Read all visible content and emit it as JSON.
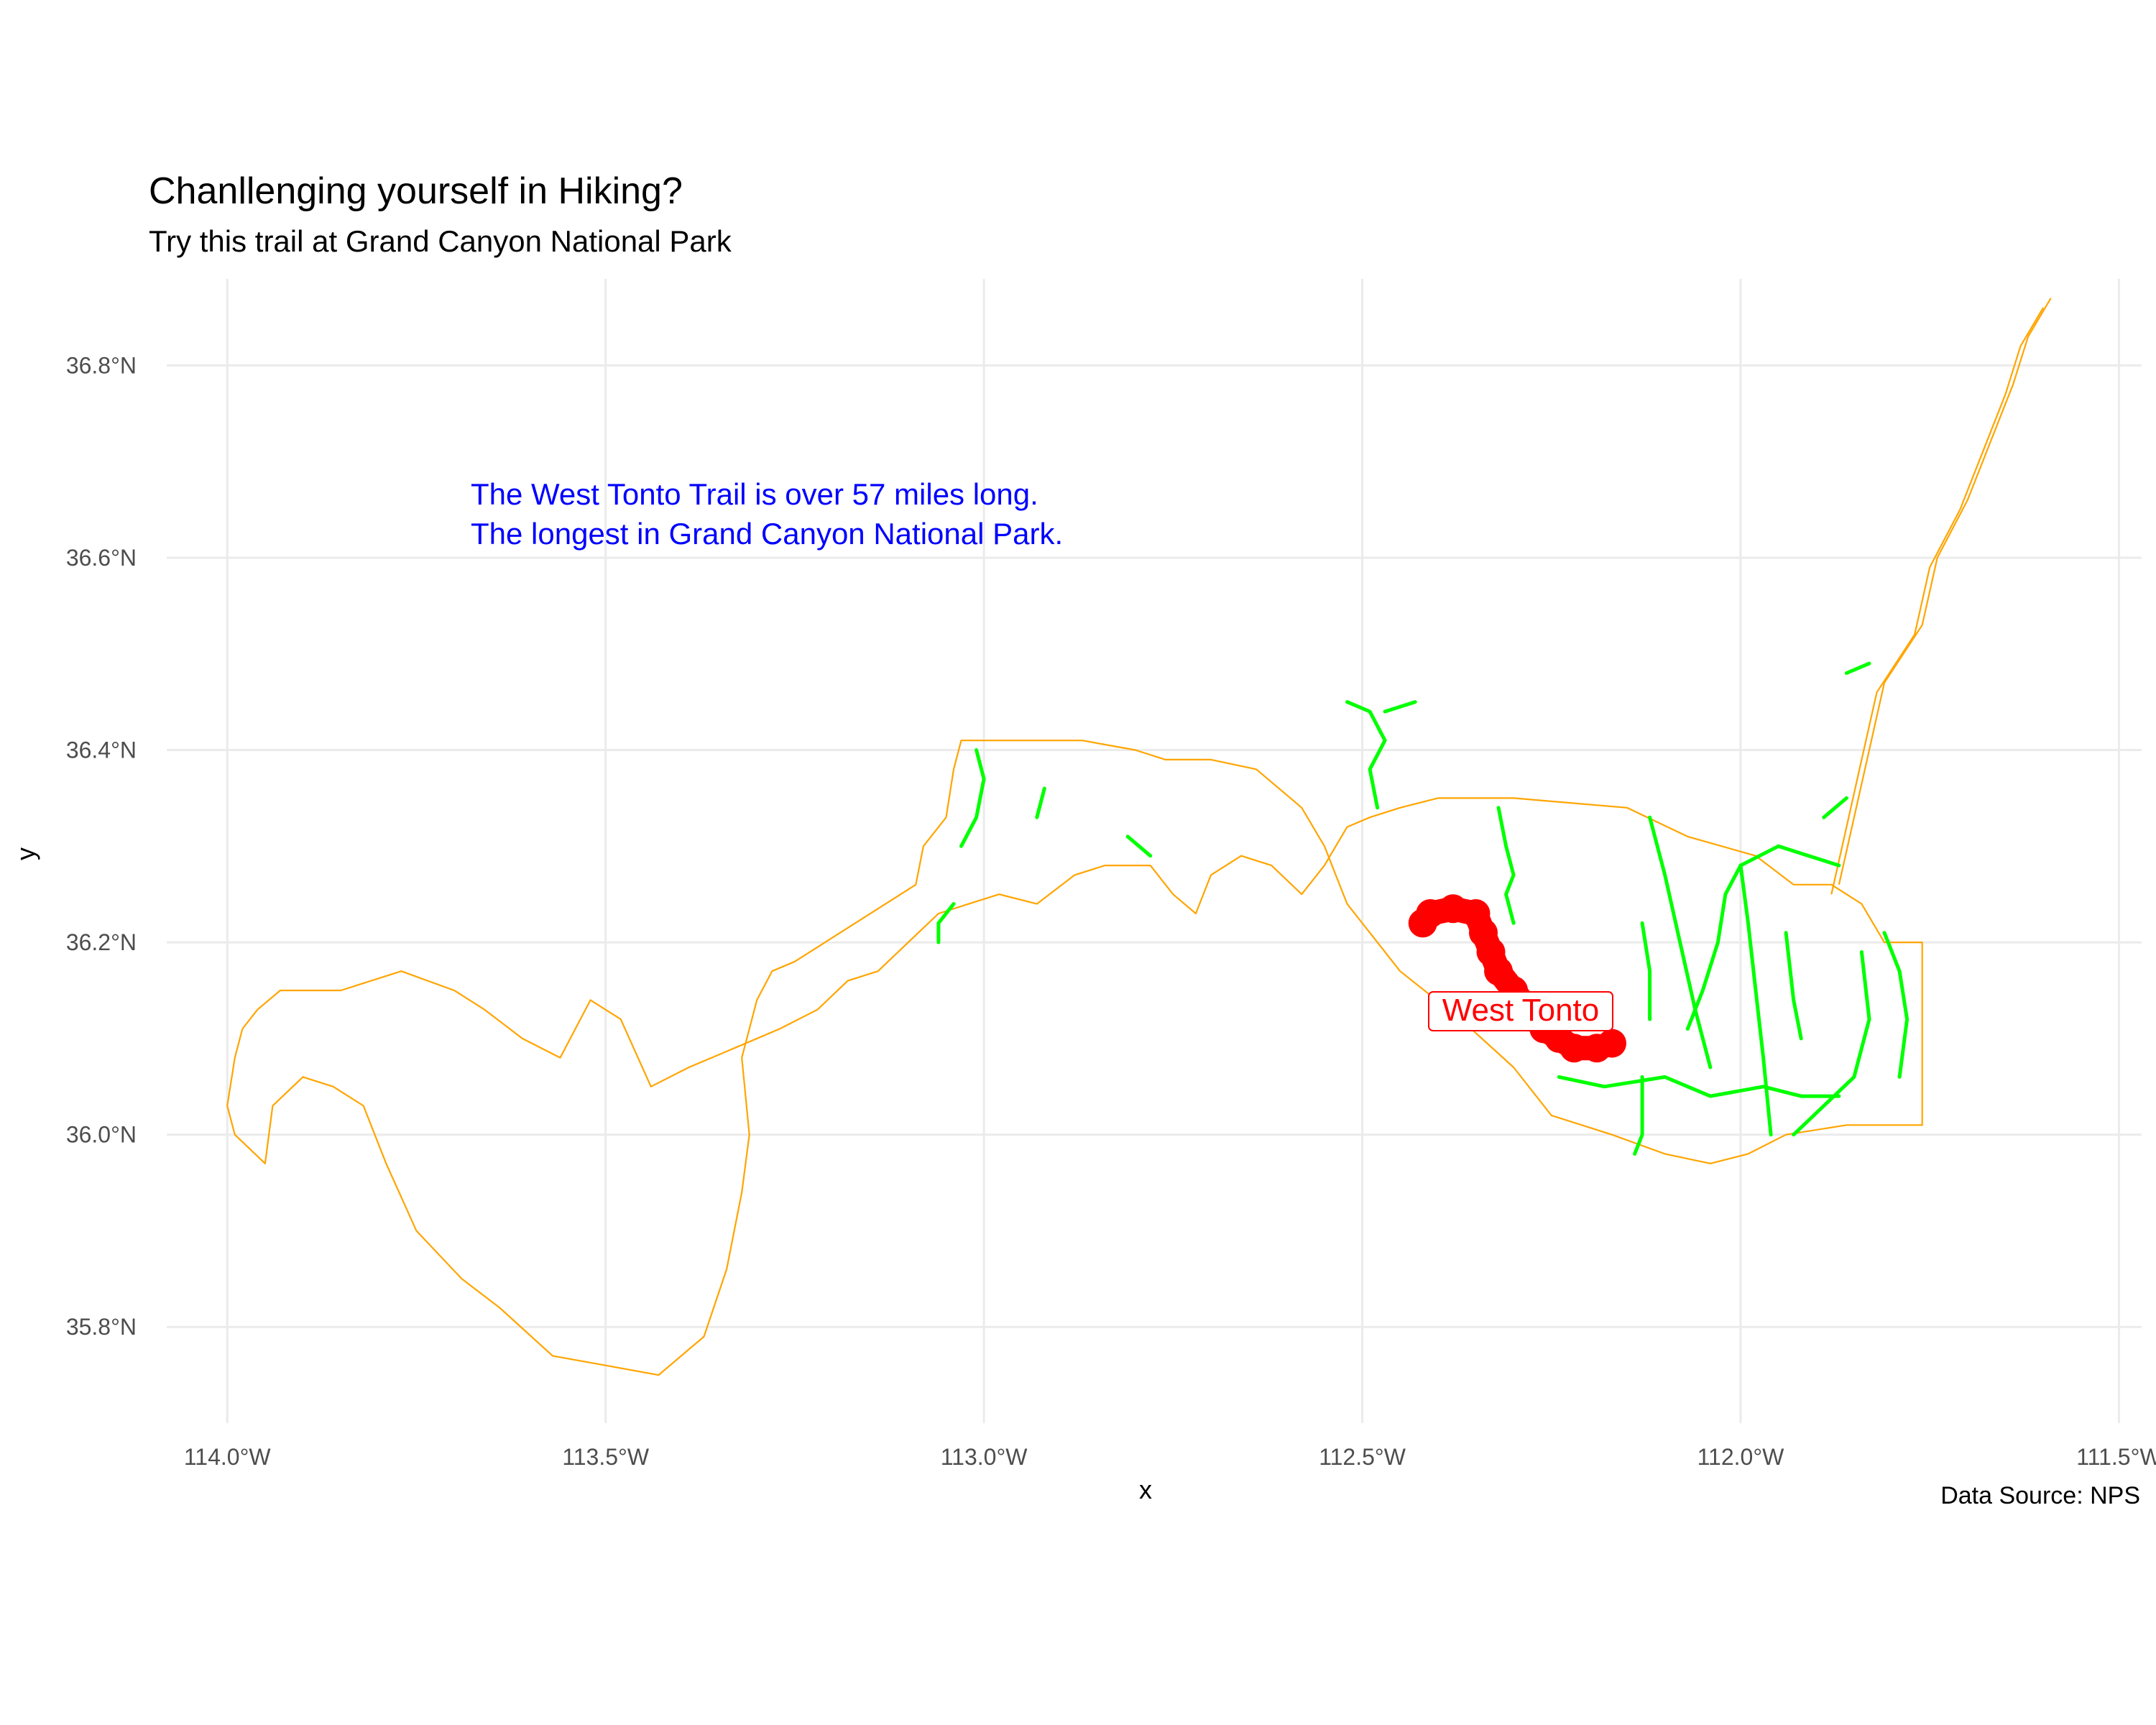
{
  "title": "Chanllenging yourself in Hiking?",
  "subtitle": "Try this trail at Grand Canyon National Park",
  "caption": "Data Source: NPS",
  "annotation": {
    "line1": "The West Tonto  Trail is over 57 miles long.",
    "line2": "The longest in Grand Canyon National Park.",
    "color": "#0000ff"
  },
  "trail_label": {
    "text": "West Tonto",
    "color": "#ff0000"
  },
  "chart_data": {
    "type": "map",
    "xlabel": "x",
    "ylabel": "y",
    "x_ticks": [
      {
        "value": -114.0,
        "label": "114.0°W"
      },
      {
        "value": -113.5,
        "label": "113.5°W"
      },
      {
        "value": -113.0,
        "label": "113.0°W"
      },
      {
        "value": -112.5,
        "label": "112.5°W"
      },
      {
        "value": -112.0,
        "label": "112.0°W"
      },
      {
        "value": -111.5,
        "label": "111.5°W"
      }
    ],
    "y_ticks": [
      {
        "value": 35.8,
        "label": "35.8°N"
      },
      {
        "value": 36.0,
        "label": "36.0°N"
      },
      {
        "value": 36.2,
        "label": "36.2°N"
      },
      {
        "value": 36.4,
        "label": "36.4°N"
      },
      {
        "value": 36.6,
        "label": "36.6°N"
      },
      {
        "value": 36.8,
        "label": "36.8°N"
      }
    ],
    "xlim": [
      -114.08,
      -111.47
    ],
    "ylim": [
      35.7,
      36.89
    ],
    "grid": true,
    "colors": {
      "boundary": "#ffa500",
      "trails": "#00ff00",
      "highlight": "#ff0000",
      "grid": "#ebebeb",
      "axis_text": "#4d4d4d"
    },
    "park_boundary": [
      [
        -113.98,
        36.11
      ],
      [
        -113.96,
        36.13
      ],
      [
        -113.93,
        36.15
      ],
      [
        -113.85,
        36.15
      ],
      [
        -113.77,
        36.17
      ],
      [
        -113.7,
        36.15
      ],
      [
        -113.66,
        36.13
      ],
      [
        -113.61,
        36.1
      ],
      [
        -113.56,
        36.08
      ],
      [
        -113.52,
        36.14
      ],
      [
        -113.48,
        36.12
      ],
      [
        -113.44,
        36.05
      ],
      [
        -113.39,
        36.07
      ],
      [
        -113.33,
        36.09
      ],
      [
        -113.27,
        36.11
      ],
      [
        -113.22,
        36.13
      ],
      [
        -113.18,
        36.16
      ],
      [
        -113.14,
        36.17
      ],
      [
        -113.1,
        36.2
      ],
      [
        -113.06,
        36.23
      ],
      [
        -113.02,
        36.24
      ],
      [
        -112.98,
        36.25
      ],
      [
        -112.93,
        36.24
      ],
      [
        -112.88,
        36.27
      ],
      [
        -112.84,
        36.28
      ],
      [
        -112.78,
        36.28
      ],
      [
        -112.75,
        36.25
      ],
      [
        -112.72,
        36.23
      ],
      [
        -112.7,
        36.27
      ],
      [
        -112.66,
        36.29
      ],
      [
        -112.62,
        36.28
      ],
      [
        -112.58,
        36.25
      ],
      [
        -112.55,
        36.28
      ],
      [
        -112.52,
        36.32
      ],
      [
        -112.49,
        36.33
      ],
      [
        -112.45,
        36.34
      ],
      [
        -112.4,
        36.35
      ],
      [
        -112.3,
        36.35
      ],
      [
        -112.15,
        36.34
      ],
      [
        -112.07,
        36.31
      ],
      [
        -111.98,
        36.29
      ],
      [
        -111.93,
        36.26
      ],
      [
        -111.88,
        36.26
      ],
      [
        -111.84,
        36.24
      ],
      [
        -111.81,
        36.2
      ],
      [
        -111.76,
        36.2
      ],
      [
        -111.76,
        36.01
      ],
      [
        -111.86,
        36.01
      ],
      [
        -111.94,
        36.0
      ],
      [
        -111.99,
        35.98
      ],
      [
        -112.04,
        35.97
      ],
      [
        -112.1,
        35.98
      ],
      [
        -112.17,
        36.0
      ],
      [
        -112.25,
        36.02
      ],
      [
        -112.3,
        36.07
      ],
      [
        -112.37,
        36.12
      ],
      [
        -112.45,
        36.17
      ],
      [
        -112.52,
        36.24
      ],
      [
        -112.55,
        36.3
      ],
      [
        -112.58,
        36.34
      ],
      [
        -112.64,
        36.38
      ],
      [
        -112.7,
        36.39
      ],
      [
        -112.76,
        36.39
      ],
      [
        -112.8,
        36.4
      ],
      [
        -112.87,
        36.41
      ],
      [
        -113.03,
        36.41
      ],
      [
        -113.04,
        36.38
      ],
      [
        -113.05,
        36.33
      ],
      [
        -113.08,
        36.3
      ],
      [
        -113.09,
        36.26
      ],
      [
        -113.13,
        36.24
      ],
      [
        -113.17,
        36.22
      ],
      [
        -113.21,
        36.2
      ],
      [
        -113.25,
        36.18
      ],
      [
        -113.28,
        36.17
      ],
      [
        -113.3,
        36.14
      ],
      [
        -113.32,
        36.08
      ],
      [
        -113.31,
        36.0
      ],
      [
        -113.32,
        35.94
      ],
      [
        -113.34,
        35.86
      ],
      [
        -113.37,
        35.79
      ],
      [
        -113.43,
        35.75
      ],
      [
        -113.5,
        35.76
      ],
      [
        -113.57,
        35.77
      ],
      [
        -113.64,
        35.82
      ],
      [
        -113.69,
        35.85
      ],
      [
        -113.75,
        35.9
      ],
      [
        -113.79,
        35.97
      ],
      [
        -113.82,
        36.03
      ],
      [
        -113.86,
        36.05
      ],
      [
        -113.9,
        36.06
      ],
      [
        -113.94,
        36.03
      ],
      [
        -113.95,
        35.97
      ],
      [
        -113.99,
        36.0
      ],
      [
        -114.0,
        36.03
      ],
      [
        -113.99,
        36.08
      ],
      [
        -113.98,
        36.11
      ]
    ],
    "north_arm": [
      [
        -111.87,
        36.26
      ],
      [
        -111.85,
        36.33
      ],
      [
        -111.83,
        36.4
      ],
      [
        -111.81,
        36.47
      ],
      [
        -111.76,
        36.53
      ],
      [
        -111.74,
        36.6
      ],
      [
        -111.7,
        36.66
      ],
      [
        -111.67,
        36.72
      ],
      [
        -111.64,
        36.78
      ],
      [
        -111.62,
        36.83
      ],
      [
        -111.59,
        36.87
      ]
    ],
    "north_arm_inner": [
      [
        -111.88,
        36.25
      ],
      [
        -111.86,
        36.32
      ],
      [
        -111.84,
        36.39
      ],
      [
        -111.82,
        36.46
      ],
      [
        -111.77,
        36.52
      ],
      [
        -111.75,
        36.59
      ],
      [
        -111.71,
        36.65
      ],
      [
        -111.68,
        36.71
      ],
      [
        -111.65,
        36.77
      ],
      [
        -111.63,
        36.82
      ],
      [
        -111.6,
        36.86
      ]
    ],
    "trails": [
      [
        [
          -113.01,
          36.4
        ],
        [
          -113.0,
          36.37
        ],
        [
          -113.01,
          36.33
        ],
        [
          -113.03,
          36.3
        ]
      ],
      [
        [
          -112.92,
          36.36
        ],
        [
          -112.93,
          36.33
        ]
      ],
      [
        [
          -113.04,
          36.24
        ],
        [
          -113.06,
          36.22
        ],
        [
          -113.06,
          36.2
        ]
      ],
      [
        [
          -112.52,
          36.45
        ],
        [
          -112.49,
          36.44
        ],
        [
          -112.47,
          36.41
        ],
        [
          -112.49,
          36.38
        ],
        [
          -112.48,
          36.34
        ]
      ],
      [
        [
          -112.47,
          36.44
        ],
        [
          -112.43,
          36.45
        ]
      ],
      [
        [
          -112.32,
          36.34
        ],
        [
          -112.31,
          36.3
        ],
        [
          -112.3,
          36.27
        ],
        [
          -112.31,
          36.25
        ],
        [
          -112.3,
          36.22
        ]
      ],
      [
        [
          -112.12,
          36.33
        ],
        [
          -112.1,
          36.27
        ],
        [
          -112.08,
          36.2
        ],
        [
          -112.06,
          36.13
        ],
        [
          -112.04,
          36.07
        ]
      ],
      [
        [
          -112.13,
          36.22
        ],
        [
          -112.12,
          36.17
        ],
        [
          -112.12,
          36.12
        ]
      ],
      [
        [
          -112.13,
          36.06
        ],
        [
          -112.13,
          36.0
        ],
        [
          -112.14,
          35.98
        ]
      ],
      [
        [
          -112.0,
          36.28
        ],
        [
          -112.02,
          36.25
        ],
        [
          -112.03,
          36.2
        ],
        [
          -112.05,
          36.15
        ],
        [
          -112.07,
          36.11
        ]
      ],
      [
        [
          -112.0,
          36.28
        ],
        [
          -111.95,
          36.3
        ],
        [
          -111.91,
          36.29
        ],
        [
          -111.87,
          36.28
        ]
      ],
      [
        [
          -112.0,
          36.28
        ],
        [
          -111.99,
          36.22
        ],
        [
          -111.98,
          36.15
        ],
        [
          -111.97,
          36.08
        ],
        [
          -111.96,
          36.0
        ]
      ],
      [
        [
          -112.24,
          36.06
        ],
        [
          -112.18,
          36.05
        ],
        [
          -112.1,
          36.06
        ],
        [
          -112.04,
          36.04
        ],
        [
          -111.97,
          36.05
        ],
        [
          -111.92,
          36.04
        ],
        [
          -111.87,
          36.04
        ]
      ],
      [
        [
          -111.81,
          36.21
        ],
        [
          -111.79,
          36.17
        ],
        [
          -111.78,
          36.12
        ],
        [
          -111.79,
          36.06
        ]
      ],
      [
        [
          -111.84,
          36.19
        ],
        [
          -111.83,
          36.12
        ],
        [
          -111.85,
          36.06
        ],
        [
          -111.89,
          36.03
        ],
        [
          -111.93,
          36.0
        ]
      ],
      [
        [
          -111.94,
          36.21
        ],
        [
          -111.93,
          36.14
        ],
        [
          -111.92,
          36.1
        ]
      ],
      [
        [
          -111.86,
          36.48
        ],
        [
          -111.83,
          36.49
        ]
      ],
      [
        [
          -111.89,
          36.33
        ],
        [
          -111.86,
          36.35
        ]
      ],
      [
        [
          -112.81,
          36.31
        ],
        [
          -112.78,
          36.29
        ]
      ]
    ],
    "highlight_trail": {
      "name": "West Tonto",
      "path": [
        [
          -112.42,
          36.22
        ],
        [
          -112.41,
          36.23
        ],
        [
          -112.38,
          36.235
        ],
        [
          -112.35,
          36.23
        ],
        [
          -112.34,
          36.21
        ],
        [
          -112.33,
          36.19
        ],
        [
          -112.32,
          36.17
        ],
        [
          -112.3,
          36.15
        ],
        [
          -112.28,
          36.13
        ],
        [
          -112.26,
          36.11
        ],
        [
          -112.24,
          36.1
        ],
        [
          -112.22,
          36.09
        ],
        [
          -112.19,
          36.09
        ],
        [
          -112.17,
          36.095
        ]
      ]
    }
  }
}
